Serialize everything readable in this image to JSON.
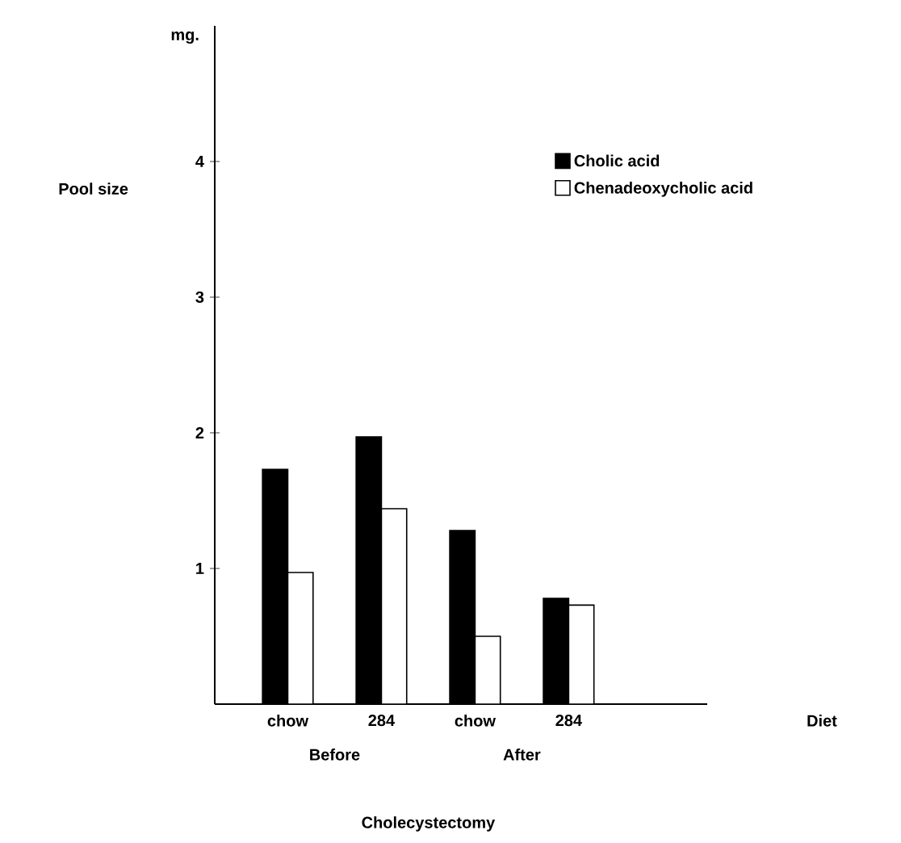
{
  "chart_data": {
    "type": "bar",
    "ylabel": "Pool size",
    "categories": [
      "chow",
      "284",
      "chow",
      "284"
    ],
    "series": [
      {
        "name": "Cholic acid",
        "color": "#000000",
        "values": [
          1.73,
          1.97,
          1.28,
          0.78
        ]
      },
      {
        "name": "Chenadeoxycholic acid",
        "color": "#ffffff",
        "values": [
          0.97,
          1.44,
          0.5,
          0.73
        ]
      }
    ],
    "ylim": [
      0,
      5
    ],
    "yticks": [
      1,
      2,
      3,
      4
    ],
    "legend": "top right",
    "annotations": [
      "mg.",
      "Before",
      "After",
      "Cholecystectomy",
      "Diet"
    ]
  }
}
